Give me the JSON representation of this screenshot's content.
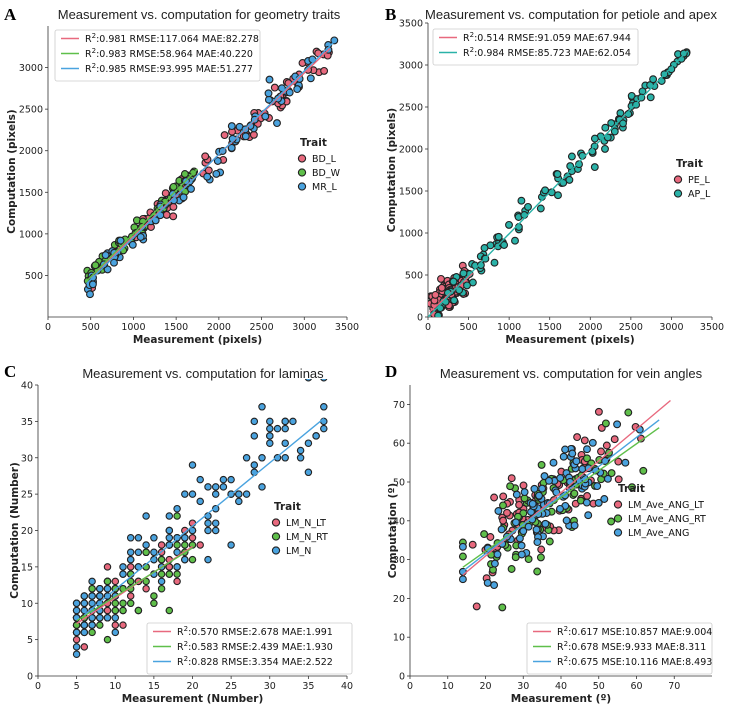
{
  "chart_data": [
    {
      "type": "scatter",
      "panel": "A",
      "title": "Measurement vs. computation for geometry traits",
      "xlabel": "Measurement (pixels)",
      "ylabel": "Computation (pixels)",
      "xlim": [
        0,
        3500
      ],
      "ylim": [
        0,
        3500
      ],
      "xticks": [
        0,
        500,
        1000,
        1500,
        2000,
        2500,
        3000,
        3500
      ],
      "yticks": [
        500,
        1000,
        1500,
        2000,
        2500,
        3000
      ],
      "legend_title": "Trait",
      "series": [
        {
          "name": "BD_L",
          "color": "#e8697e",
          "stats": ":0.981 RMSE:117.064 MAE:82.278",
          "fit": {
            "x": [
              500,
              3300
            ],
            "y": [
              480,
              3230
            ]
          }
        },
        {
          "name": "BD_W",
          "color": "#5fbf4a",
          "stats": ":0.983 RMSE:58.964 MAE:40.220",
          "fit": {
            "x": [
              450,
              1750
            ],
            "y": [
              430,
              1780
            ]
          }
        },
        {
          "name": "MR_L",
          "color": "#4aa3df",
          "stats": ":0.985 RMSE:93.995 MAE:51.277",
          "fit": {
            "x": [
              450,
              3380
            ],
            "y": [
              400,
              3340
            ]
          }
        }
      ]
    },
    {
      "type": "scatter",
      "panel": "B",
      "title": "Measurement vs. computation for petiole and apex",
      "xlabel": "Measurement (pixels)",
      "ylabel": "Computation (pixels)",
      "xlim": [
        0,
        3500
      ],
      "ylim": [
        0,
        3500
      ],
      "xticks": [
        0,
        500,
        1000,
        1500,
        2000,
        2500,
        3000,
        3500
      ],
      "yticks": [
        0,
        500,
        1000,
        1500,
        2000,
        2500,
        3000,
        3500
      ],
      "legend_title": "Trait",
      "series": [
        {
          "name": "PE_L",
          "color": "#e8697e",
          "stats": ":0.514 RMSE:91.059 MAE:67.944",
          "fit": {
            "x": [
              20,
              550
            ],
            "y": [
              60,
              520
            ]
          }
        },
        {
          "name": "AP_L",
          "color": "#2ab2a8",
          "stats": ":0.984 RMSE:85.723 MAE:62.054",
          "fit": {
            "x": [
              0,
              3200
            ],
            "y": [
              0,
              3170
            ]
          }
        }
      ]
    },
    {
      "type": "scatter",
      "panel": "C",
      "title": "Measurement vs. computation for laminas",
      "xlabel": "Measurement (Number)",
      "ylabel": "Computation (Number)",
      "xlim": [
        0,
        40
      ],
      "ylim": [
        0,
        40
      ],
      "xticks": [
        0,
        5,
        10,
        15,
        20,
        25,
        30,
        35,
        40
      ],
      "yticks": [
        0,
        5,
        10,
        15,
        20,
        25,
        30,
        35,
        40
      ],
      "legend_title": "Trait",
      "series": [
        {
          "name": "LM_N_LT",
          "color": "#e8697e",
          "stats": ":0.570 RMSE:2.678 MAE:1.991",
          "fit": {
            "x": [
              5,
              20
            ],
            "y": [
              7.2,
              17.8
            ]
          }
        },
        {
          "name": "LM_N_RT",
          "color": "#5fbf4a",
          "stats": ":0.583 RMSE:2.439 MAE:1.930",
          "fit": {
            "x": [
              5,
              20
            ],
            "y": [
              7.6,
              17.6
            ]
          }
        },
        {
          "name": "LM_N",
          "color": "#4aa3df",
          "stats": ":0.828 RMSE:3.354 MAE:2.522",
          "fit": {
            "x": [
              6,
              37
            ],
            "y": [
              8.4,
              35.4
            ]
          }
        }
      ]
    },
    {
      "type": "scatter",
      "panel": "D",
      "title": "Measurement vs. computation for vein angles",
      "xlabel": "Measurement (º)",
      "ylabel": "Computation (º)",
      "xlim": [
        0,
        80
      ],
      "ylim": [
        0,
        75
      ],
      "xticks": [
        0,
        10,
        20,
        30,
        40,
        50,
        60,
        70
      ],
      "yticks": [
        0,
        10,
        20,
        30,
        40,
        50,
        60,
        70
      ],
      "legend_title": "Trait",
      "series": [
        {
          "name": "LM_Ave_ANG_LT",
          "color": "#e8697e",
          "stats": ":0.617 MSE:10.857 MAE:9.004",
          "fit": {
            "x": [
              14,
              69
            ],
            "y": [
              26,
              71
            ]
          }
        },
        {
          "name": "LM_Ave_ANG_RT",
          "color": "#5fbf4a",
          "stats": ":0.678 MSE:9.933 MAE:8.311",
          "fit": {
            "x": [
              14,
              66
            ],
            "y": [
              28,
              64
            ]
          }
        },
        {
          "name": "LM_Ave_ANG",
          "color": "#4aa3df",
          "stats": ":0.675 MSE:10.116 MAE:8.493",
          "fit": {
            "x": [
              14,
              66
            ],
            "y": [
              27,
              66
            ]
          }
        }
      ]
    }
  ],
  "r2_label": "R",
  "r2_sup": "2"
}
